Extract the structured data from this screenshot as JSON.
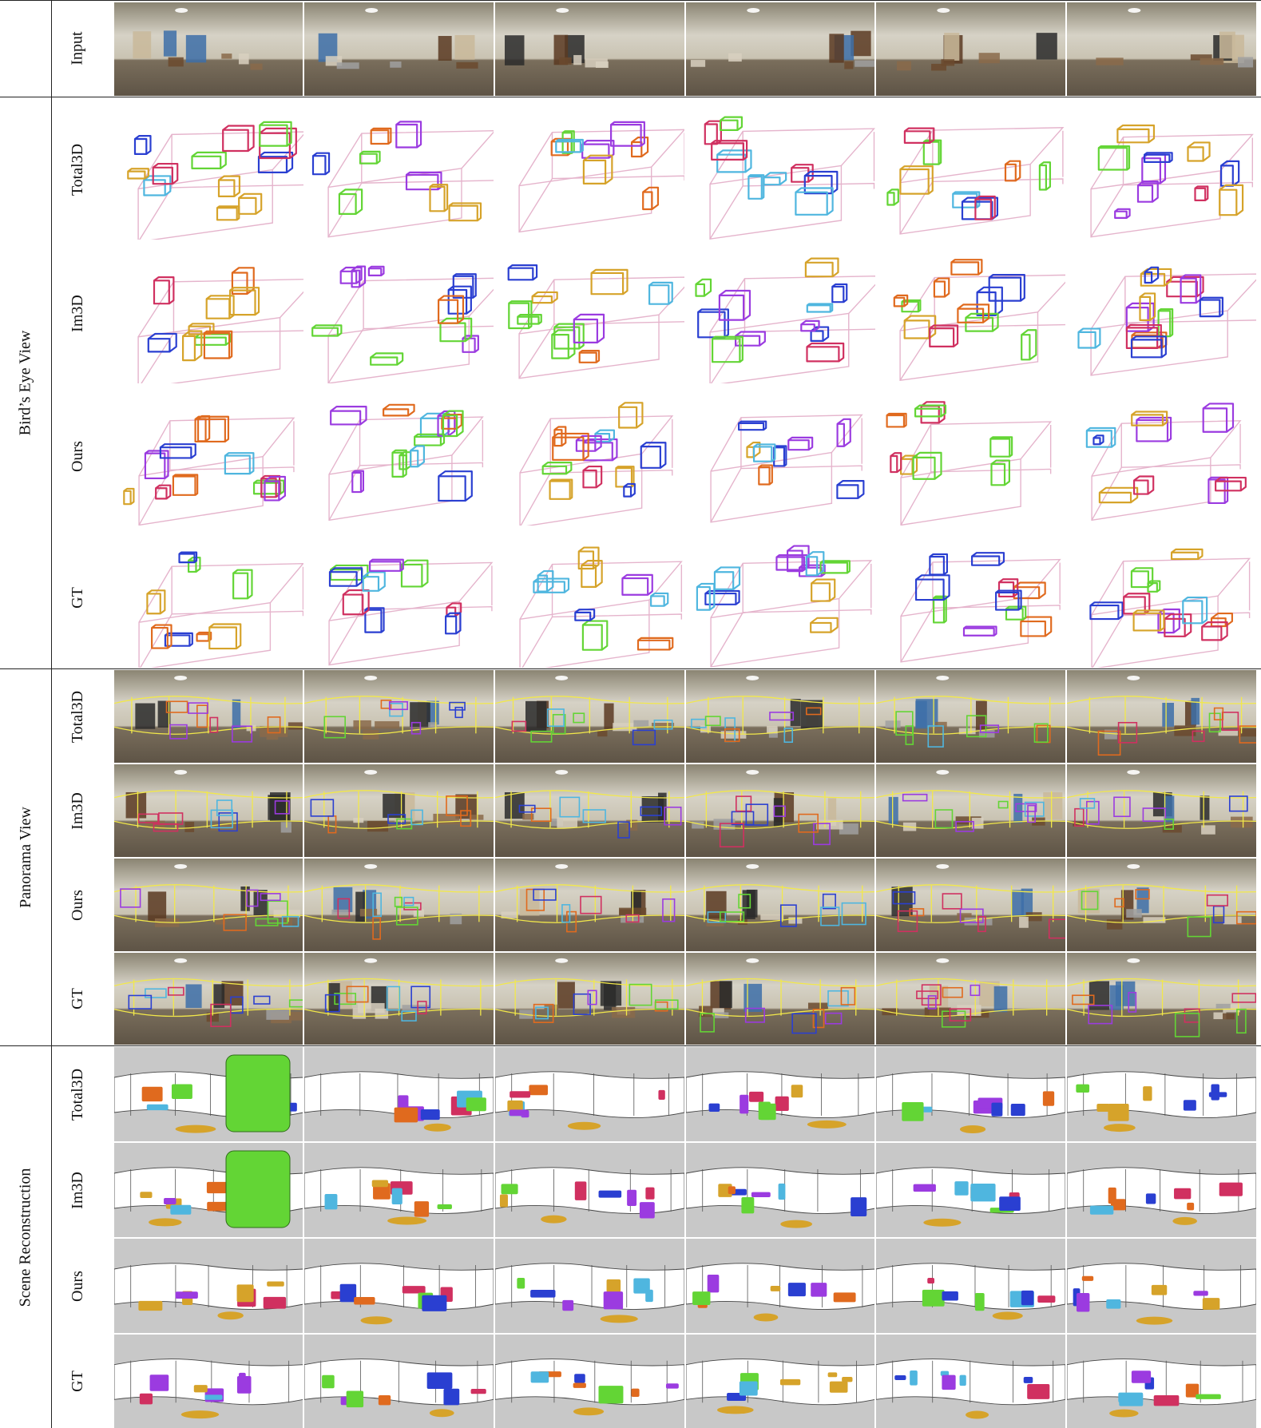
{
  "groups": {
    "bev": "Bird’s Eye View",
    "pano": "Panorama View",
    "recon": "Scene Reconstruction"
  },
  "rows": {
    "input": "Input",
    "bev_total3d": "Total3D",
    "bev_im3d": "Im3D",
    "bev_ours": "Ours",
    "bev_gt": "GT",
    "pano_total3d": "Total3D",
    "pano_im3d": "Im3D",
    "pano_ours": "Ours",
    "pano_gt": "GT",
    "recon_total3d": "Total3D",
    "recon_im3d": "Im3D",
    "recon_ours": "Ours",
    "recon_gt": "GT"
  },
  "colors": {
    "room_wireframe": "#e5b4cc",
    "window_green": "#63d535",
    "bed_red": "#d03060",
    "sofa_blue": "#2a3fd1",
    "table_orange": "#e06a1e",
    "chair_gold": "#d6a32a",
    "cabinet_purple": "#9b3be0",
    "light_blue": "#4fb6df",
    "layout_yellow": "#f2e84a",
    "recon_background": "#c8c8c8",
    "floor_wood": "#5e5446",
    "wall_beige": "#d6d2c6"
  },
  "icons": {
    "bev": "3d-bounding-box-wireframe",
    "pano": "panorama-photo-with-boxes",
    "recon": "mesh-reconstruction-render"
  }
}
